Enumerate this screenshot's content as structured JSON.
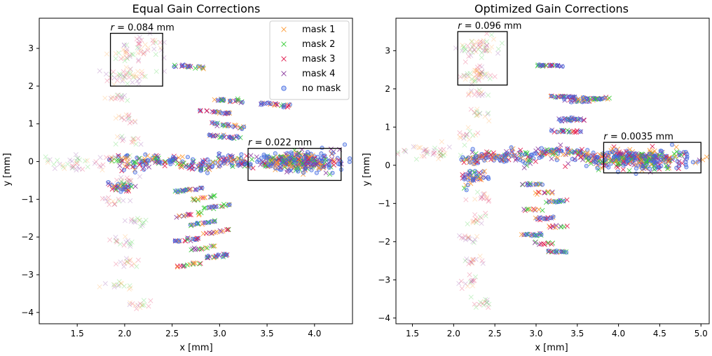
{
  "chart_data": [
    {
      "type": "scatter",
      "title": "Equal Gain Corrections",
      "xlabel": "x [mm]",
      "ylabel": "y [mm]",
      "xlim": [
        1.1,
        4.4
      ],
      "ylim": [
        -4.3,
        3.8
      ],
      "xticks": [
        "1.5",
        "2.0",
        "2.5",
        "3.0",
        "3.5",
        "4.0"
      ],
      "yticks": [
        "−4",
        "−3",
        "−2",
        "−1",
        "0",
        "1",
        "2",
        "3"
      ],
      "legend": {
        "placement": "top-right",
        "entries": [
          "mask 1",
          "mask 2",
          "mask 3",
          "mask 4",
          "no mask"
        ]
      },
      "annotations": [
        {
          "text": "r = 0.084 mm",
          "box_x": [
            1.85,
            2.4
          ],
          "box_y": [
            2.0,
            3.4
          ]
        },
        {
          "text": "r = 0.022 mm",
          "box_x": [
            3.3,
            4.28
          ],
          "box_y": [
            -0.5,
            0.35
          ]
        }
      ],
      "clusters": [
        {
          "x": 3.8,
          "y": 0.1,
          "type": "main"
        },
        {
          "x": 2.9,
          "y": 1.6,
          "type": "column"
        },
        {
          "x": 2.6,
          "y": -2.8,
          "type": "column"
        },
        {
          "x": 1.8,
          "y": -3.3,
          "type": "faded"
        },
        {
          "x": 2.1,
          "y": 3.1,
          "type": "faded"
        }
      ]
    },
    {
      "type": "scatter",
      "title": "Optimized Gain Corrections",
      "xlabel": "x [mm]",
      "ylabel": "y [mm]",
      "xlim": [
        1.3,
        5.1
      ],
      "ylim": [
        -4.15,
        3.85
      ],
      "xticks": [
        "1.5",
        "2.0",
        "2.5",
        "3.0",
        "3.5",
        "4.0",
        "4.5",
        "5.0"
      ],
      "yticks": [
        "−4",
        "−3",
        "−2",
        "−1",
        "0",
        "1",
        "2",
        "3"
      ],
      "annotations": [
        {
          "text": "r = 0.096 mm",
          "box_x": [
            2.05,
            2.65
          ],
          "box_y": [
            2.1,
            3.5
          ]
        },
        {
          "text": "r = 0.0035 mm",
          "box_x": [
            3.82,
            5.0
          ],
          "box_y": [
            -0.2,
            0.6
          ]
        }
      ],
      "clusters": [
        {
          "x": 4.2,
          "y": 0.1,
          "type": "main"
        },
        {
          "x": 3.2,
          "y": 1.8,
          "type": "column"
        },
        {
          "x": 3.0,
          "y": -2.3,
          "type": "column"
        },
        {
          "x": 2.1,
          "y": -3.3,
          "type": "faded"
        },
        {
          "x": 2.3,
          "y": 3.1,
          "type": "faded"
        }
      ]
    }
  ],
  "legend_colors": {
    "mask 1": "#ff9a33",
    "mask 2": "#33cc33",
    "mask 3": "#e0154a",
    "mask 4": "#8a3a9e",
    "no mask": "#4169e1"
  }
}
